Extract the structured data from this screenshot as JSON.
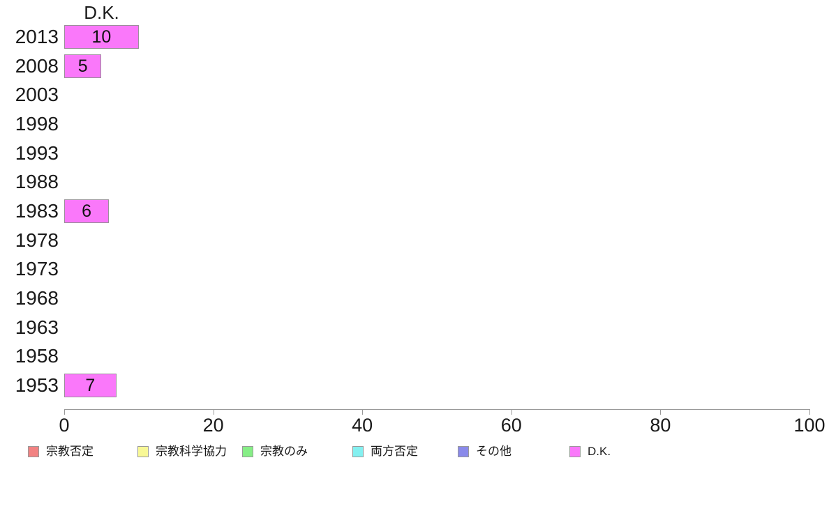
{
  "chart_data": {
    "type": "bar",
    "orientation": "horizontal",
    "title": "D.K.",
    "categories": [
      "2013",
      "2008",
      "2003",
      "1998",
      "1993",
      "1988",
      "1983",
      "1978",
      "1973",
      "1968",
      "1963",
      "1958",
      "1953"
    ],
    "values": [
      10,
      5,
      0,
      0,
      0,
      0,
      6,
      0,
      0,
      0,
      0,
      0,
      7
    ],
    "xlabel": "",
    "ylabel": "",
    "xlim": [
      0,
      100
    ],
    "x_ticks": [
      0,
      20,
      40,
      60,
      80,
      100
    ],
    "grid": false,
    "bar_color": "#fa78fa",
    "bar_border_color": "#9b8f9b",
    "axis_color": "#999999",
    "text_color": "#1a1a1a",
    "legend_position": "bottom",
    "legend": [
      {
        "label": "宗教否定",
        "color": "#f28282"
      },
      {
        "label": "宗教科学協力",
        "color": "#f8f896"
      },
      {
        "label": "宗教のみ",
        "color": "#86ee86"
      },
      {
        "label": "両方否定",
        "color": "#84f0f0"
      },
      {
        "label": "その他",
        "color": "#8a8aea"
      },
      {
        "label": "D.K.",
        "color": "#fa78fa"
      }
    ]
  }
}
